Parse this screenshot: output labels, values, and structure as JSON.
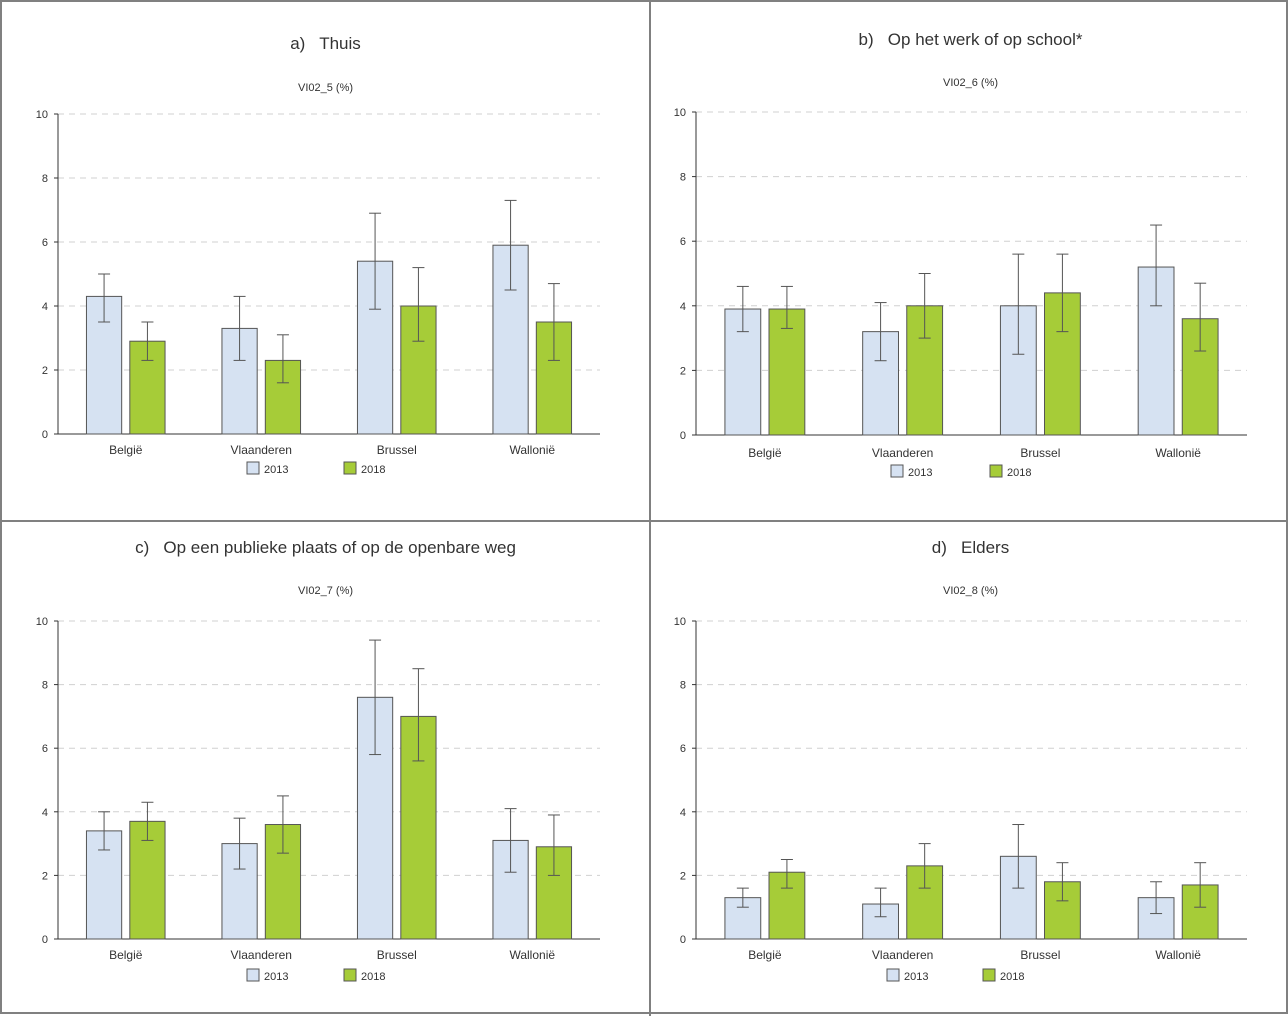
{
  "legend": [
    "2013",
    "2018"
  ],
  "colors": {
    "s2013": "#d6e2f2",
    "s2018": "#a6cc38",
    "errorbar": "#555555",
    "axis": "#333333",
    "grid": "#d0d0d0",
    "stroke": "#555555"
  },
  "chart_data": [
    {
      "type": "bar",
      "panel_title": "a)   Thuis",
      "title": "VI02_5 (%)",
      "categories": [
        "België",
        "Vlaanderen",
        "Brussel",
        "Wallonië"
      ],
      "ylim": [
        0,
        10
      ],
      "yticks": [
        0,
        2,
        4,
        6,
        8,
        10
      ],
      "grid": true,
      "legend_position": "bottom",
      "series": [
        {
          "name": "2013",
          "values": [
            4.3,
            3.3,
            5.4,
            5.9
          ],
          "lower": [
            3.5,
            2.3,
            3.9,
            4.5
          ],
          "upper": [
            5.0,
            4.3,
            6.9,
            7.3
          ]
        },
        {
          "name": "2018",
          "values": [
            2.9,
            2.3,
            4.0,
            3.5
          ],
          "lower": [
            2.3,
            1.6,
            2.9,
            2.3
          ],
          "upper": [
            3.5,
            3.1,
            5.2,
            4.7
          ]
        }
      ]
    },
    {
      "type": "bar",
      "panel_title": "b)   Op het werk of op school*",
      "title": "VI02_6 (%)",
      "categories": [
        "België",
        "Vlaanderen",
        "Brussel",
        "Wallonië"
      ],
      "ylim": [
        0,
        10
      ],
      "yticks": [
        0,
        2,
        4,
        6,
        8,
        10
      ],
      "grid": true,
      "legend_position": "bottom",
      "series": [
        {
          "name": "2013",
          "values": [
            3.9,
            3.2,
            4.0,
            5.2
          ],
          "lower": [
            3.2,
            2.3,
            2.5,
            4.0
          ],
          "upper": [
            4.6,
            4.1,
            5.6,
            6.5
          ]
        },
        {
          "name": "2018",
          "values": [
            3.9,
            4.0,
            4.4,
            3.6
          ],
          "lower": [
            3.3,
            3.0,
            3.2,
            2.6
          ],
          "upper": [
            4.6,
            5.0,
            5.6,
            4.7
          ]
        }
      ]
    },
    {
      "type": "bar",
      "panel_title": "c)   Op een publieke plaats of op de openbare weg",
      "title": "VI02_7 (%)",
      "categories": [
        "België",
        "Vlaanderen",
        "Brussel",
        "Wallonië"
      ],
      "ylim": [
        0,
        10
      ],
      "yticks": [
        0,
        2,
        4,
        6,
        8,
        10
      ],
      "grid": true,
      "legend_position": "bottom",
      "series": [
        {
          "name": "2013",
          "values": [
            3.4,
            3.0,
            7.6,
            3.1
          ],
          "lower": [
            2.8,
            2.2,
            5.8,
            2.1
          ],
          "upper": [
            4.0,
            3.8,
            9.4,
            4.1
          ]
        },
        {
          "name": "2018",
          "values": [
            3.7,
            3.6,
            7.0,
            2.9
          ],
          "lower": [
            3.1,
            2.7,
            5.6,
            2.0
          ],
          "upper": [
            4.3,
            4.5,
            8.5,
            3.9
          ]
        }
      ]
    },
    {
      "type": "bar",
      "panel_title": "d)   Elders",
      "title": "VI02_8 (%)",
      "categories": [
        "België",
        "Vlaanderen",
        "Brussel",
        "Wallonië"
      ],
      "ylim": [
        0,
        10
      ],
      "yticks": [
        0,
        2,
        4,
        6,
        8,
        10
      ],
      "grid": true,
      "legend_position": "bottom",
      "series": [
        {
          "name": "2013",
          "values": [
            1.3,
            1.1,
            2.6,
            1.3
          ],
          "lower": [
            1.0,
            0.7,
            1.6,
            0.8
          ],
          "upper": [
            1.6,
            1.6,
            3.6,
            1.8
          ]
        },
        {
          "name": "2018",
          "values": [
            2.1,
            2.3,
            1.8,
            1.7
          ],
          "lower": [
            1.6,
            1.6,
            1.2,
            1.0
          ],
          "upper": [
            2.5,
            3.0,
            2.4,
            2.4
          ]
        }
      ]
    }
  ]
}
